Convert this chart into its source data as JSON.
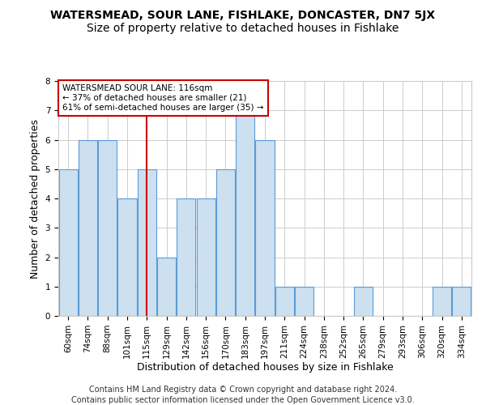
{
  "title": "WATERSMEAD, SOUR LANE, FISHLAKE, DONCASTER, DN7 5JX",
  "subtitle": "Size of property relative to detached houses in Fishlake",
  "xlabel": "Distribution of detached houses by size in Fishlake",
  "ylabel": "Number of detached properties",
  "footer_line1": "Contains HM Land Registry data © Crown copyright and database right 2024.",
  "footer_line2": "Contains public sector information licensed under the Open Government Licence v3.0.",
  "categories": [
    "60sqm",
    "74sqm",
    "88sqm",
    "101sqm",
    "115sqm",
    "129sqm",
    "142sqm",
    "156sqm",
    "170sqm",
    "183sqm",
    "197sqm",
    "211sqm",
    "224sqm",
    "238sqm",
    "252sqm",
    "265sqm",
    "279sqm",
    "293sqm",
    "306sqm",
    "320sqm",
    "334sqm"
  ],
  "values": [
    5,
    6,
    6,
    4,
    5,
    2,
    4,
    4,
    5,
    7,
    6,
    1,
    1,
    0,
    0,
    1,
    0,
    0,
    0,
    1,
    1
  ],
  "bar_color": "#cce0f0",
  "bar_edge_color": "#5b9bd5",
  "highlight_index": 4,
  "highlight_line_color": "#cc0000",
  "ylim": [
    0,
    8
  ],
  "yticks": [
    0,
    1,
    2,
    3,
    4,
    5,
    6,
    7,
    8
  ],
  "annotation_text_line1": "WATERSMEAD SOUR LANE: 116sqm",
  "annotation_text_line2": "← 37% of detached houses are smaller (21)",
  "annotation_text_line3": "61% of semi-detached houses are larger (35) →",
  "annotation_box_color": "#ffffff",
  "annotation_box_edge": "#cc0000",
  "background_color": "#ffffff",
  "grid_color": "#cccccc",
  "title_fontsize": 10,
  "subtitle_fontsize": 10,
  "axis_label_fontsize": 9,
  "tick_fontsize": 7.5,
  "annotation_fontsize": 7.5,
  "footer_fontsize": 7
}
